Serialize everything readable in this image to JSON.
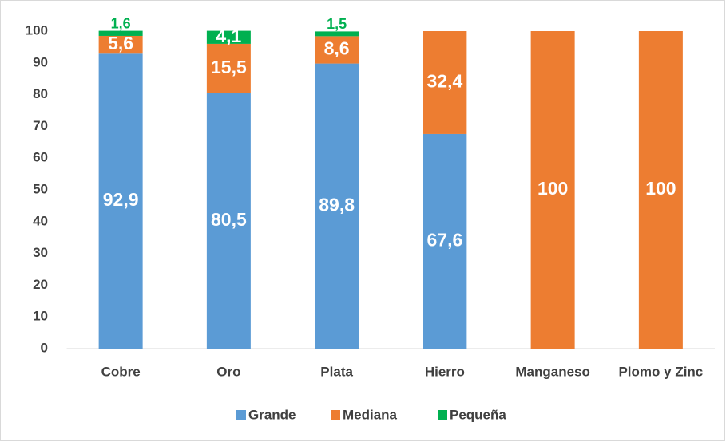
{
  "chart_data": {
    "type": "stacked_bar",
    "categories": [
      "Cobre",
      "Oro",
      "Plata",
      "Hierro",
      "Manganeso",
      "Plomo y Zinc"
    ],
    "series": [
      {
        "name": "Grande",
        "color": "#5b9bd5",
        "values": [
          92.9,
          80.5,
          89.8,
          67.6,
          null,
          null
        ],
        "value_labels": [
          "92,9",
          "80,5",
          "89,8",
          "67,6",
          null,
          null
        ]
      },
      {
        "name": "Mediana",
        "color": "#ed7d31",
        "values": [
          5.6,
          15.5,
          8.6,
          32.4,
          100,
          100
        ],
        "value_labels": [
          "5,6",
          "15,5",
          "8,6",
          "32,4",
          "100",
          "100"
        ]
      },
      {
        "name": "Pequeña",
        "color": "#00b050",
        "values": [
          1.6,
          4.1,
          1.5,
          null,
          null,
          null
        ],
        "value_labels": [
          "1,6",
          "4,1",
          "1,5",
          null,
          null,
          null
        ]
      }
    ],
    "ylim": [
      0,
      100
    ],
    "yticks": [
      0,
      10,
      20,
      30,
      40,
      50,
      60,
      70,
      80,
      90,
      100
    ],
    "grid": false,
    "legend": "bottom"
  }
}
